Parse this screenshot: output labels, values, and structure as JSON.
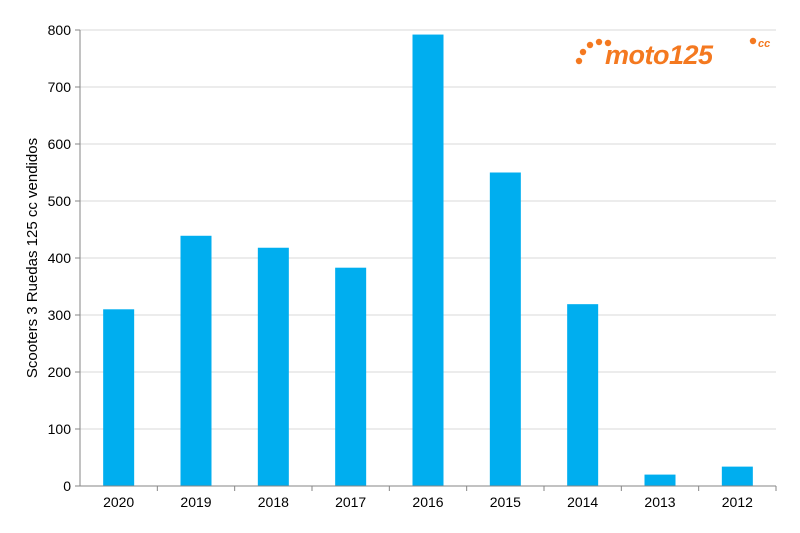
{
  "chart_data": {
    "type": "bar",
    "title": "",
    "xlabel": "",
    "ylabel": "Scooters 3 Ruedas 125 cc vendidos",
    "categories": [
      "2020",
      "2019",
      "2018",
      "2017",
      "2016",
      "2015",
      "2014",
      "2013",
      "2012"
    ],
    "values": [
      310,
      439,
      418,
      383,
      792,
      550,
      319,
      20,
      34
    ],
    "ylim": [
      0,
      800
    ],
    "yticks": [
      "0",
      "100",
      "200",
      "300",
      "400",
      "500",
      "600",
      "700",
      "800"
    ],
    "grid": true,
    "legend": "none",
    "bar_color": "#00AEEF"
  },
  "logo": {
    "name": "moto125",
    "main": "moto125",
    "suffix": "cc",
    "color": "#F47920"
  }
}
